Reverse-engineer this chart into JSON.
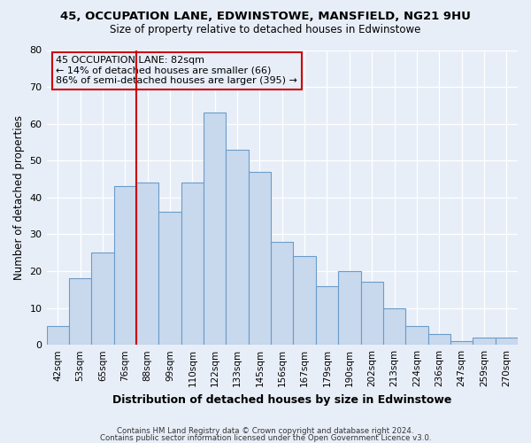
{
  "title1": "45, OCCUPATION LANE, EDWINSTOWE, MANSFIELD, NG21 9HU",
  "title2": "Size of property relative to detached houses in Edwinstowe",
  "xlabel": "Distribution of detached houses by size in Edwinstowe",
  "ylabel": "Number of detached properties",
  "bin_labels": [
    "42sqm",
    "53sqm",
    "65sqm",
    "76sqm",
    "88sqm",
    "99sqm",
    "110sqm",
    "122sqm",
    "133sqm",
    "145sqm",
    "156sqm",
    "167sqm",
    "179sqm",
    "190sqm",
    "202sqm",
    "213sqm",
    "224sqm",
    "236sqm",
    "247sqm",
    "259sqm",
    "270sqm"
  ],
  "bar_heights": [
    5,
    18,
    25,
    43,
    44,
    36,
    44,
    63,
    53,
    47,
    28,
    24,
    16,
    20,
    17,
    10,
    5,
    3,
    1,
    2,
    2
  ],
  "bar_color": "#c8d9ee",
  "bar_edgecolor": "#6b9cc9",
  "vline_color": "#cc0000",
  "annotation_title": "45 OCCUPATION LANE: 82sqm",
  "annotation_line1": "← 14% of detached houses are smaller (66)",
  "annotation_line2": "86% of semi-detached houses are larger (395) →",
  "annotation_box_edgecolor": "#cc0000",
  "annotation_box_facecolor": "#e8eef8",
  "ylim": [
    0,
    80
  ],
  "yticks": [
    0,
    10,
    20,
    30,
    40,
    50,
    60,
    70,
    80
  ],
  "footer1": "Contains HM Land Registry data © Crown copyright and database right 2024.",
  "footer2": "Contains public sector information licensed under the Open Government Licence v3.0.",
  "bg_color": "#e8eef8",
  "grid_color": "#ffffff",
  "title1_fontsize": 9.5,
  "title2_fontsize": 8.5
}
